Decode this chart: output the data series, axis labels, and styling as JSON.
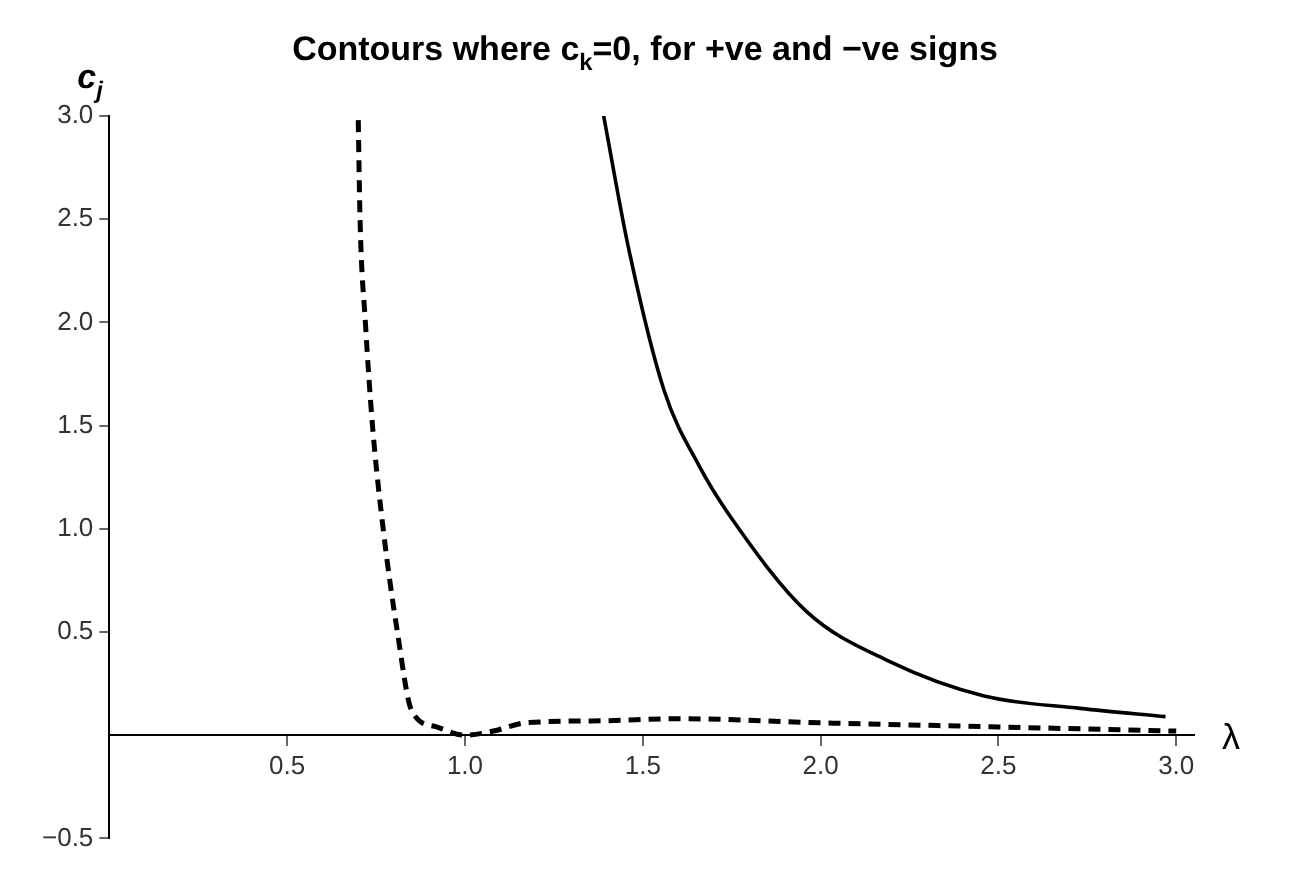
{
  "chart_data": {
    "type": "line",
    "title": "Contours where c$_{k}$=0, for +ve and −ve signs",
    "xlabel": "λ",
    "ylabel": "c$_{j}$",
    "xlim": [
      0,
      3.05
    ],
    "ylim": [
      -0.5,
      3.0
    ],
    "xticks": [
      0.5,
      {
        "value": 1,
        "label": "1.0"
      },
      1.5,
      {
        "value": 2,
        "label": "2.0"
      },
      2.5,
      {
        "value": 3,
        "label": "3.0"
      }
    ],
    "yticks": [
      -0.5,
      0.5,
      {
        "value": 1,
        "label": "1.0"
      },
      1.5,
      {
        "value": 2,
        "label": "2.0"
      },
      2.5,
      {
        "value": 3,
        "label": "3.0"
      }
    ],
    "grid": false,
    "marker": "none",
    "series": [
      {
        "color": "#000000",
        "line_style": "solid",
        "x": [
          1.39,
          1.46,
          1.56,
          1.66,
          1.75,
          1.96,
          2.19,
          2.46,
          2.73,
          2.97
        ],
        "values": [
          3.0,
          2.36,
          1.67,
          1.3,
          1.05,
          0.6,
          0.36,
          0.19,
          0.13,
          0.09
        ]
      },
      {
        "color": "#000000",
        "line_style": "dashed",
        "x": [
          0.7,
          0.705,
          0.72,
          0.74,
          0.77,
          0.81,
          0.85,
          0.92,
          1.0,
          1.08,
          1.17,
          1.39,
          1.6,
          2.0,
          2.5,
          3.0
        ],
        "values": [
          2.98,
          2.5,
          2.0,
          1.5,
          1.0,
          0.5,
          0.12,
          0.04,
          0.0,
          0.02,
          0.06,
          0.07,
          0.08,
          0.06,
          0.04,
          0.02
        ]
      }
    ]
  }
}
